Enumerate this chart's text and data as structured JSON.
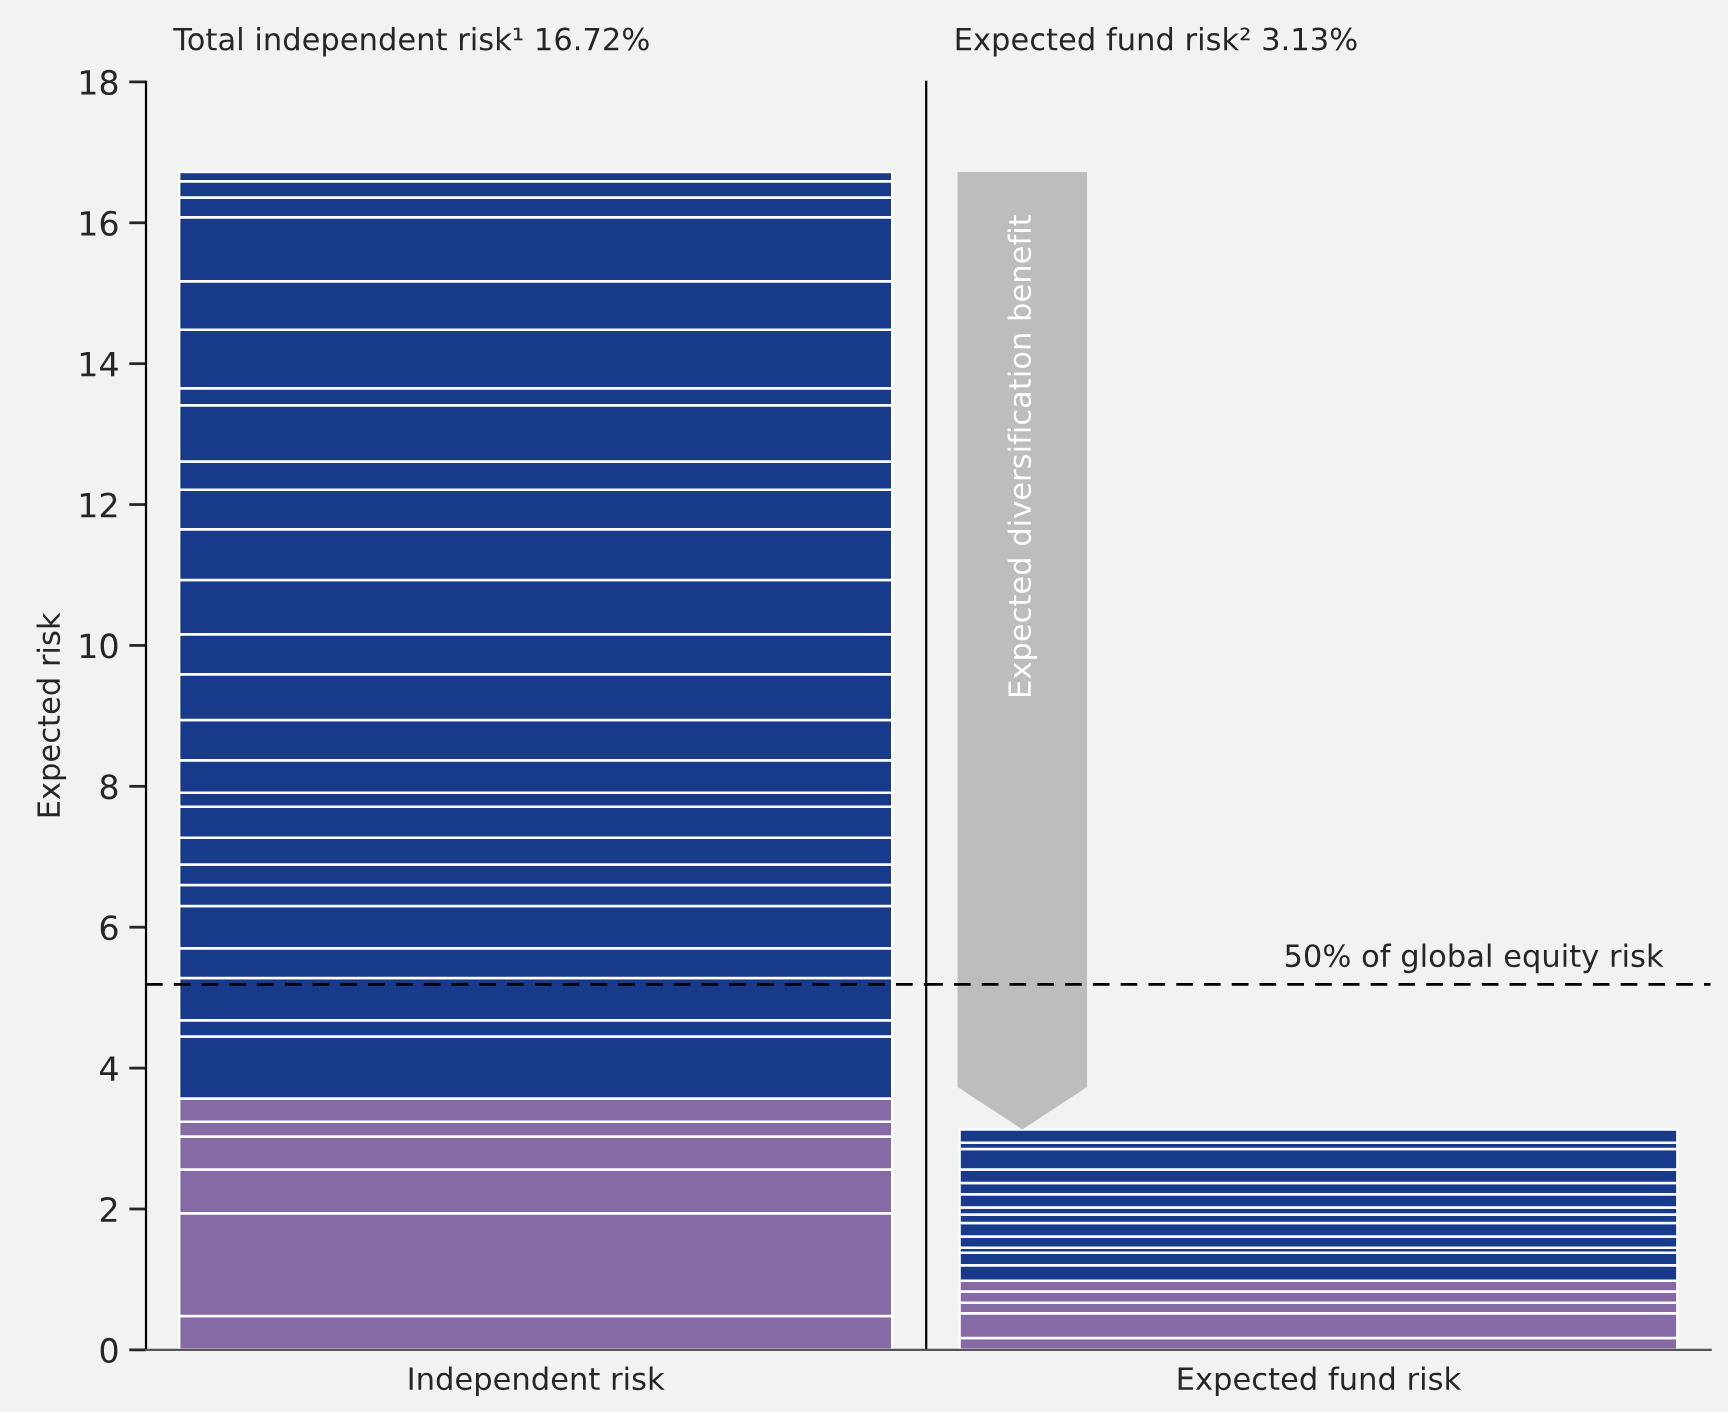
{
  "chart_data": [
    {
      "type": "bar",
      "stacked": true,
      "title": "Total independent risk¹ 16.72%",
      "ylabel": "Expected risk",
      "categories": [
        "Independent risk"
      ],
      "ylim": [
        0,
        18
      ],
      "yticks": [
        0,
        2,
        4,
        6,
        8,
        10,
        12,
        14,
        16,
        18
      ],
      "grid": false,
      "legend": false,
      "ref_lines": [
        {
          "axis": "y",
          "value": 5.19,
          "line_style": "dashed",
          "color": "#000000"
        }
      ],
      "series": [
        {
          "color": "#866aa5",
          "values": [
            0.48
          ]
        },
        {
          "color": "#866aa5",
          "values": [
            1.46
          ]
        },
        {
          "color": "#866aa5",
          "values": [
            0.62
          ]
        },
        {
          "color": "#866aa5",
          "values": [
            0.47
          ]
        },
        {
          "color": "#866aa5",
          "values": [
            0.21
          ]
        },
        {
          "color": "#866aa5",
          "values": [
            0.33
          ]
        },
        {
          "color": "#173a8a",
          "values": [
            0.88
          ]
        },
        {
          "color": "#173a8a",
          "values": [
            0.23
          ]
        },
        {
          "color": "#173a8a",
          "values": [
            0.6
          ]
        },
        {
          "color": "#173a8a",
          "values": [
            0.42
          ]
        },
        {
          "color": "#173a8a",
          "values": [
            0.6
          ]
        },
        {
          "color": "#173a8a",
          "values": [
            0.3
          ]
        },
        {
          "color": "#173a8a",
          "values": [
            0.29
          ]
        },
        {
          "color": "#173a8a",
          "values": [
            0.38
          ]
        },
        {
          "color": "#173a8a",
          "values": [
            0.44
          ]
        },
        {
          "color": "#173a8a",
          "values": [
            0.2
          ]
        },
        {
          "color": "#173a8a",
          "values": [
            0.46
          ]
        },
        {
          "color": "#173a8a",
          "values": [
            0.57
          ]
        },
        {
          "color": "#173a8a",
          "values": [
            0.65
          ]
        },
        {
          "color": "#173a8a",
          "values": [
            0.57
          ]
        },
        {
          "color": "#173a8a",
          "values": [
            0.77
          ]
        },
        {
          "color": "#173a8a",
          "values": [
            0.72
          ]
        },
        {
          "color": "#173a8a",
          "values": [
            0.56
          ]
        },
        {
          "color": "#173a8a",
          "values": [
            0.4
          ]
        },
        {
          "color": "#173a8a",
          "values": [
            0.8
          ]
        },
        {
          "color": "#173a8a",
          "values": [
            0.24
          ]
        },
        {
          "color": "#173a8a",
          "values": [
            0.83
          ]
        },
        {
          "color": "#173a8a",
          "values": [
            0.69
          ]
        },
        {
          "color": "#173a8a",
          "values": [
            0.91
          ]
        },
        {
          "color": "#173a8a",
          "values": [
            0.28
          ]
        },
        {
          "color": "#173a8a",
          "values": [
            0.23
          ]
        },
        {
          "color": "#173a8a",
          "values": [
            0.13
          ]
        }
      ]
    },
    {
      "type": "bar",
      "stacked": true,
      "title": "Expected fund risk² 3.13%",
      "categories": [
        "Expected fund risk"
      ],
      "ylim": [
        0,
        18
      ],
      "yticks": [
        0,
        2,
        4,
        6,
        8,
        10,
        12,
        14,
        16,
        18
      ],
      "tick_labels": "x",
      "grid": false,
      "legend": false,
      "annotations": [
        "Expected diversification benefit"
      ],
      "ref_lines": [
        {
          "axis": "y",
          "value": 5.19,
          "label": "50% of global equity risk",
          "line_style": "dashed",
          "color": "#000000"
        }
      ],
      "series": [
        {
          "color": "#866aa5",
          "values": [
            0.17
          ]
        },
        {
          "color": "#866aa5",
          "values": [
            0.35
          ]
        },
        {
          "color": "#866aa5",
          "values": [
            0.15
          ]
        },
        {
          "color": "#866aa5",
          "values": [
            0.16
          ]
        },
        {
          "color": "#866aa5",
          "values": [
            0.15
          ]
        },
        {
          "color": "#173a8a",
          "values": [
            0.22
          ]
        },
        {
          "color": "#173a8a",
          "values": [
            0.18
          ]
        },
        {
          "color": "#173a8a",
          "values": [
            0.07
          ]
        },
        {
          "color": "#173a8a",
          "values": [
            0.16
          ]
        },
        {
          "color": "#173a8a",
          "values": [
            0.19
          ]
        },
        {
          "color": "#173a8a",
          "values": [
            0.12
          ]
        },
        {
          "color": "#173a8a",
          "values": [
            0.1
          ]
        },
        {
          "color": "#173a8a",
          "values": [
            0.19
          ]
        },
        {
          "color": "#173a8a",
          "values": [
            0.16
          ]
        },
        {
          "color": "#173a8a",
          "values": [
            0.19
          ]
        },
        {
          "color": "#173a8a",
          "values": [
            0.29
          ]
        },
        {
          "color": "#173a8a",
          "values": [
            0.09
          ]
        },
        {
          "color": "#173a8a",
          "values": [
            0.19
          ]
        }
      ]
    }
  ]
}
